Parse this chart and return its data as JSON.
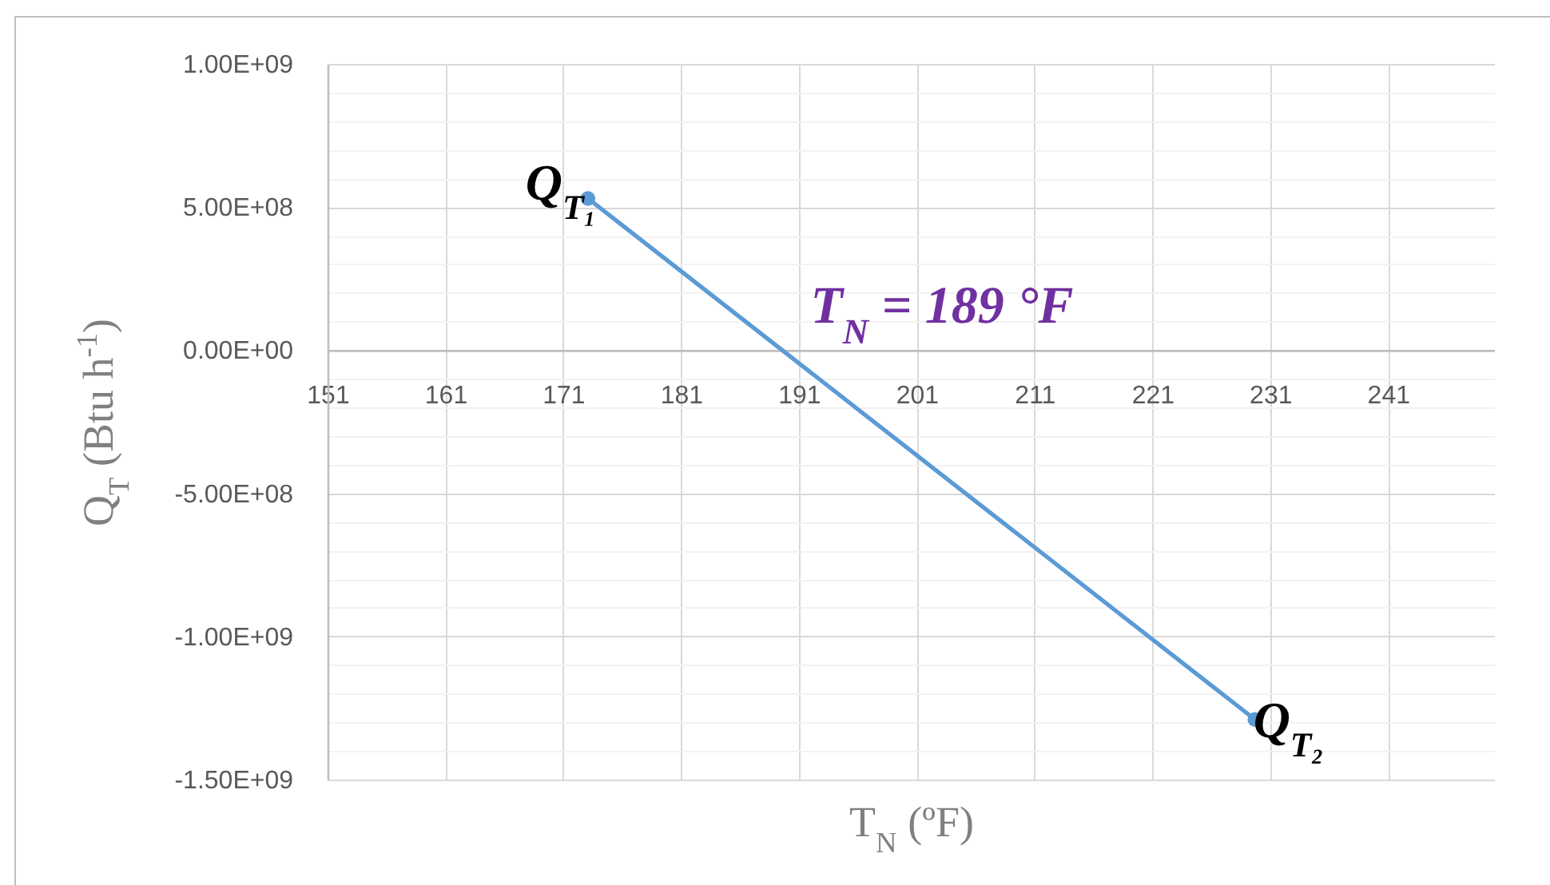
{
  "chart_data": {
    "type": "line",
    "xlabel": "T$_{N}$ (ºF)",
    "ylabel": "Q$_{T}$ (Btu h$^{-1}$)",
    "x": [
      173.1,
      229.7
    ],
    "series": [
      {
        "color": "#5b9bd5",
        "values": [
          530000000,
          -1290000000
        ]
      }
    ],
    "xlim": [
      151,
      250
    ],
    "xticks": [
      151,
      161,
      171,
      181,
      191,
      201,
      211,
      221,
      231,
      241
    ],
    "ylim": [
      -1500000000,
      1000000000
    ],
    "yticks": [
      {
        "value": -1500000000,
        "label": "-1.50E+09"
      },
      {
        "value": -1400000000,
        "label": null
      },
      {
        "value": -1300000000,
        "label": null
      },
      {
        "value": -1200000000,
        "label": null
      },
      {
        "value": -1100000000,
        "label": null
      },
      {
        "value": -1000000000,
        "label": "-1.00E+09"
      },
      {
        "value": -900000000,
        "label": null
      },
      {
        "value": -800000000,
        "label": null
      },
      {
        "value": -700000000,
        "label": null
      },
      {
        "value": -600000000,
        "label": null
      },
      {
        "value": -500000000,
        "label": "-5.00E+08"
      },
      {
        "value": -400000000,
        "label": null
      },
      {
        "value": -300000000,
        "label": null
      },
      {
        "value": -200000000,
        "label": null
      },
      {
        "value": -100000000,
        "label": null
      },
      {
        "value": 0,
        "label": "0.00E+00"
      },
      {
        "value": 100000000,
        "label": null
      },
      {
        "value": 200000000,
        "label": null
      },
      {
        "value": 300000000,
        "label": null
      },
      {
        "value": 400000000,
        "label": null
      },
      {
        "value": 500000000,
        "label": "5.00E+08"
      },
      {
        "value": 600000000,
        "label": null
      },
      {
        "value": 700000000,
        "label": null
      },
      {
        "value": 800000000,
        "label": null
      },
      {
        "value": 900000000,
        "label": null
      },
      {
        "value": 1000000000,
        "label": "1.00E+09"
      }
    ],
    "grid": true,
    "marker": "circle",
    "line_style": "solid",
    "annotations": [
      {
        "text": "Q$_{T₁}$",
        "x": 173.1,
        "y": 530000000
      },
      {
        "text": "Q$_{T₂}$",
        "x": 229.7,
        "y": -1290000000
      },
      {
        "text": "T$_{N}$ = 189 °F",
        "x": 189,
        "y": 0
      }
    ]
  }
}
